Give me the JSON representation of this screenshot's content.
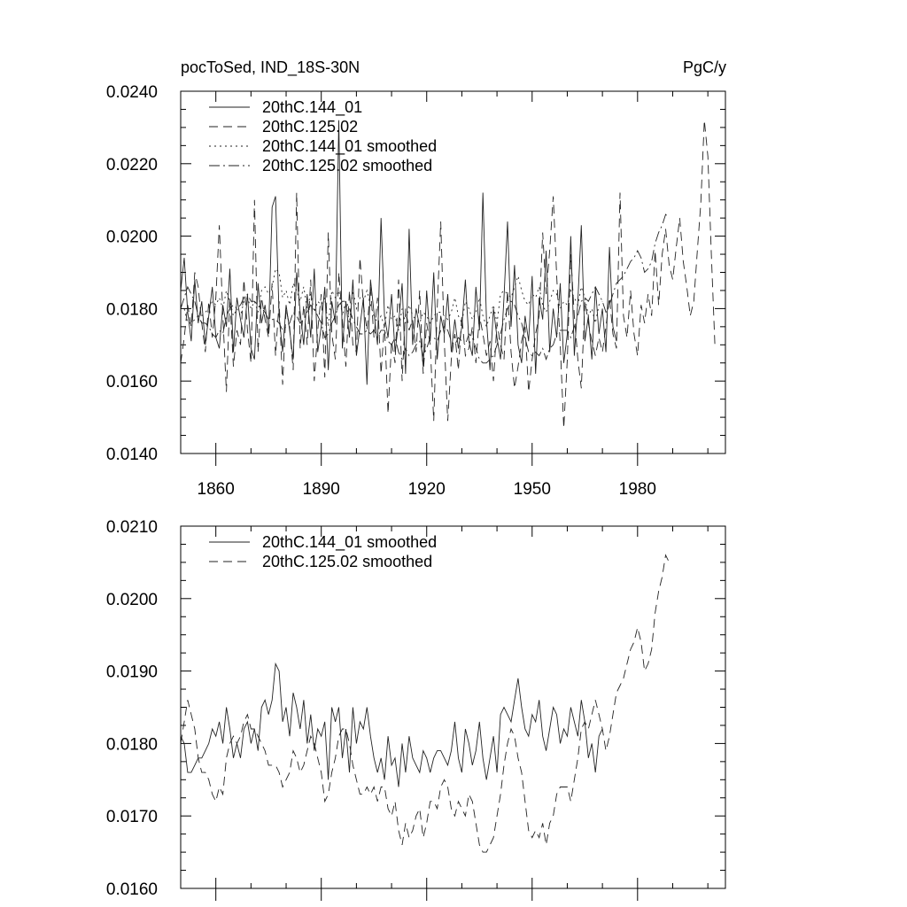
{
  "chart_data": [
    {
      "type": "line",
      "title": "pocToSed, IND_18S-30N",
      "units": "PgC/y",
      "xlim": [
        1850,
        2005
      ],
      "ylim": [
        0.014,
        0.024
      ],
      "yticks": [
        "0.0140",
        "0.0160",
        "0.0180",
        "0.0200",
        "0.0220",
        "0.0240"
      ],
      "xticks": [
        "1860",
        "1890",
        "1920",
        "1950",
        "1980"
      ],
      "legend_position": "top-left",
      "series": [
        {
          "name": "20thC.144_01",
          "style": "solid",
          "x_start": 1850,
          "values": [
            0.0185,
            0.0194,
            0.0179,
            0.0171,
            0.0188,
            0.0176,
            0.0182,
            0.017,
            0.0178,
            0.0186,
            0.0172,
            0.0169,
            0.0181,
            0.0175,
            0.0191,
            0.0168,
            0.0183,
            0.0177,
            0.0172,
            0.0184,
            0.0169,
            0.0166,
            0.0187,
            0.0176,
            0.0181,
            0.0173,
            0.0208,
            0.0211,
            0.0178,
            0.0168,
            0.0181,
            0.0174,
            0.0166,
            0.019,
            0.0179,
            0.017,
            0.0184,
            0.0172,
            0.0191,
            0.0168,
            0.0175,
            0.0186,
            0.0163,
            0.0182,
            0.0176,
            0.0232,
            0.0169,
            0.0182,
            0.0172,
            0.0188,
            0.0167,
            0.0175,
            0.0183,
            0.0159,
            0.0188,
            0.0179,
            0.017,
            0.0205,
            0.0178,
            0.0172,
            0.0184,
            0.0168,
            0.0176,
            0.0187,
            0.0162,
            0.0202,
            0.017,
            0.018,
            0.0175,
            0.0164,
            0.0185,
            0.0171,
            0.019,
            0.0166,
            0.0178,
            0.0173,
            0.0184,
            0.0168,
            0.0177,
            0.0169,
            0.0175,
            0.0188,
            0.0171,
            0.0167,
            0.0186,
            0.0174,
            0.0212,
            0.0177,
            0.0163,
            0.018,
            0.0172,
            0.0166,
            0.0183,
            0.0204,
            0.0175,
            0.0192,
            0.017,
            0.0165,
            0.0178,
            0.0171,
            0.0189,
            0.0162,
            0.0183,
            0.0177,
            0.0196,
            0.0168,
            0.018,
            0.0172,
            0.0187,
            0.0165,
            0.0173,
            0.02,
            0.0167,
            0.0182,
            0.0203,
            0.0171,
            0.0178,
            0.0166,
            0.0186,
            0.0173,
            0.018,
            0.0168,
            0.0197,
            0.0175,
            0.0171
          ]
        },
        {
          "name": "20thC.125.02",
          "style": "dashed",
          "x_start": 1850,
          "values": [
            0.0165,
            0.0172,
            0.0181,
            0.0175,
            0.019,
            0.0186,
            0.0176,
            0.0168,
            0.0182,
            0.0172,
            0.0183,
            0.0203,
            0.0178,
            0.0157,
            0.0183,
            0.0164,
            0.0174,
            0.017,
            0.0188,
            0.0174,
            0.0165,
            0.021,
            0.0168,
            0.0183,
            0.0177,
            0.0172,
            0.0187,
            0.0167,
            0.0182,
            0.0159,
            0.018,
            0.0175,
            0.0163,
            0.0212,
            0.0169,
            0.0181,
            0.017,
            0.0188,
            0.016,
            0.0174,
            0.0184,
            0.0161,
            0.0201,
            0.0173,
            0.0166,
            0.019,
            0.0177,
            0.0164,
            0.0185,
            0.017,
            0.0168,
            0.0194,
            0.0181,
            0.0174,
            0.0186,
            0.0172,
            0.0183,
            0.0162,
            0.0176,
            0.0151,
            0.0171,
            0.0165,
            0.0188,
            0.016,
            0.018,
            0.0174,
            0.0177,
            0.0168,
            0.0185,
            0.0162,
            0.0176,
            0.017,
            0.0149,
            0.018,
            0.0204,
            0.0171,
            0.0149,
            0.0166,
            0.0173,
            0.0163,
            0.0178,
            0.0167,
            0.0169,
            0.0175,
            0.0165,
            0.0178,
            0.0173,
            0.0167,
            0.0171,
            0.016,
            0.0176,
            0.017,
            0.0166,
            0.0185,
            0.0168,
            0.0158,
            0.0164,
            0.0171,
            0.0175,
            0.0157,
            0.0166,
            0.0173,
            0.0178,
            0.0201,
            0.0184,
            0.0196,
            0.0211,
            0.0189,
            0.017,
            0.0147,
            0.0166,
            0.0195,
            0.0178,
            0.0166,
            0.0158,
            0.0182,
            0.0176,
            0.0171,
            0.0167,
            0.0172,
            0.0168,
            0.0175,
            0.0183,
            0.0173,
            0.0169,
            0.0212,
            0.0178,
            0.0172,
            0.0185,
            0.0173,
            0.0167,
            0.0181,
            0.0176,
            0.0184,
            0.0178,
            0.0196,
            0.0181,
            0.0195,
            0.0202,
            0.0192,
            0.0188,
            0.0197,
            0.0205,
            0.0193,
            0.0186,
            0.0178,
            0.0182,
            0.0196,
            0.0209,
            0.0232,
            0.0222,
            0.0195,
            0.017
          ]
        },
        {
          "name": "20thC.144_01 smoothed",
          "style": "dotted",
          "x_start": 1850,
          "values": [
            0.0181,
            0.018,
            0.0176,
            0.0176,
            0.0177,
            0.0178,
            0.0178,
            0.0179,
            0.018,
            0.0182,
            0.0181,
            0.0183,
            0.018,
            0.0185,
            0.0182,
            0.0178,
            0.018,
            0.0178,
            0.0182,
            0.0183,
            0.018,
            0.0182,
            0.0179,
            0.0185,
            0.0186,
            0.0184,
            0.0186,
            0.0191,
            0.019,
            0.0183,
            0.0185,
            0.0181,
            0.0187,
            0.0185,
            0.0182,
            0.0186,
            0.018,
            0.0184,
            0.0179,
            0.0182,
            0.0181,
            0.0183,
            0.0175,
            0.0185,
            0.0183,
            0.0185,
            0.0178,
            0.0182,
            0.0176,
            0.0185,
            0.018,
            0.0183,
            0.0182,
            0.0185,
            0.0181,
            0.0178,
            0.0176,
            0.0178,
            0.0175,
            0.0181,
            0.0177,
            0.0178,
            0.0174,
            0.018,
            0.0176,
            0.0181,
            0.0178,
            0.0177,
            0.0176,
            0.0179,
            0.0178,
            0.0176,
            0.0178,
            0.0179,
            0.0179,
            0.0178,
            0.0177,
            0.0179,
            0.0183,
            0.0178,
            0.0176,
            0.0182,
            0.018,
            0.0177,
            0.0179,
            0.0183,
            0.0178,
            0.0175,
            0.0178,
            0.0181,
            0.0176,
            0.0184,
            0.0185,
            0.0184,
            0.0183,
            0.0186,
            0.0189,
            0.0185,
            0.0182,
            0.0181,
            0.0184,
            0.0183,
            0.0186,
            0.0181,
            0.0179,
            0.0182,
            0.0185,
            0.0184,
            0.018,
            0.0182,
            0.0181,
            0.0185,
            0.0183,
            0.0181,
            0.0186,
            0.0183,
            0.0178,
            0.018,
            0.0176,
            0.0181,
            0.0182
          ]
        },
        {
          "name": "20thC.125.02 smoothed",
          "style": "dashdot",
          "x_start": 1850,
          "values": [
            0.018,
            0.0183,
            0.0186,
            0.0184,
            0.0182,
            0.0178,
            0.0176,
            0.0176,
            0.0175,
            0.0173,
            0.0172,
            0.0174,
            0.0173,
            0.0178,
            0.018,
            0.0181,
            0.018,
            0.0181,
            0.0183,
            0.0184,
            0.0182,
            0.0182,
            0.0181,
            0.018,
            0.0179,
            0.0177,
            0.0177,
            0.0177,
            0.0176,
            0.0174,
            0.0175,
            0.0176,
            0.0179,
            0.0178,
            0.0176,
            0.0177,
            0.0179,
            0.0181,
            0.018,
            0.0178,
            0.0176,
            0.0172,
            0.0173,
            0.0176,
            0.0178,
            0.0181,
            0.0182,
            0.0182,
            0.018,
            0.0177,
            0.0175,
            0.0173,
            0.0173,
            0.0174,
            0.0173,
            0.0174,
            0.0172,
            0.0174,
            0.0174,
            0.0171,
            0.017,
            0.0172,
            0.0168,
            0.0166,
            0.0169,
            0.0167,
            0.0168,
            0.017,
            0.0171,
            0.0167,
            0.0169,
            0.0172,
            0.0172,
            0.0171,
            0.0174,
            0.0175,
            0.0174,
            0.0171,
            0.017,
            0.0172,
            0.0171,
            0.017,
            0.0173,
            0.0172,
            0.0169,
            0.0166,
            0.0165,
            0.0165,
            0.0166,
            0.0167,
            0.017,
            0.0173,
            0.0177,
            0.018,
            0.0182,
            0.0181,
            0.0178,
            0.0176,
            0.0172,
            0.0168,
            0.0167,
            0.0168,
            0.0167,
            0.0169,
            0.0166,
            0.0169,
            0.017,
            0.0173,
            0.0174,
            0.0174,
            0.0174,
            0.0172,
            0.0175,
            0.0178,
            0.0182,
            0.0183,
            0.0182,
            0.0184,
            0.0186,
            0.0184,
            0.0182,
            0.0179,
            0.0181,
            0.0184,
            0.0187,
            0.0188,
            0.0189,
            0.0191,
            0.0193,
            0.0194,
            0.0196,
            0.0194,
            0.019,
            0.0191,
            0.0193,
            0.0198,
            0.0201,
            0.0203,
            0.0206,
            0.0205
          ]
        }
      ]
    },
    {
      "type": "line",
      "title": "",
      "xlim": [
        1850,
        2005
      ],
      "ylim": [
        0.016,
        0.021
      ],
      "yticks": [
        "0.0160",
        "0.0170",
        "0.0180",
        "0.0190",
        "0.0200",
        "0.0210"
      ],
      "xticks": [],
      "legend_position": "top-left",
      "series": [
        {
          "name": "20thC.144_01 smoothed",
          "style": "solid",
          "ref": "20thC.144_01 smoothed"
        },
        {
          "name": "20thC.125.02 smoothed",
          "style": "dashed",
          "ref": "20thC.125.02 smoothed"
        }
      ]
    }
  ]
}
